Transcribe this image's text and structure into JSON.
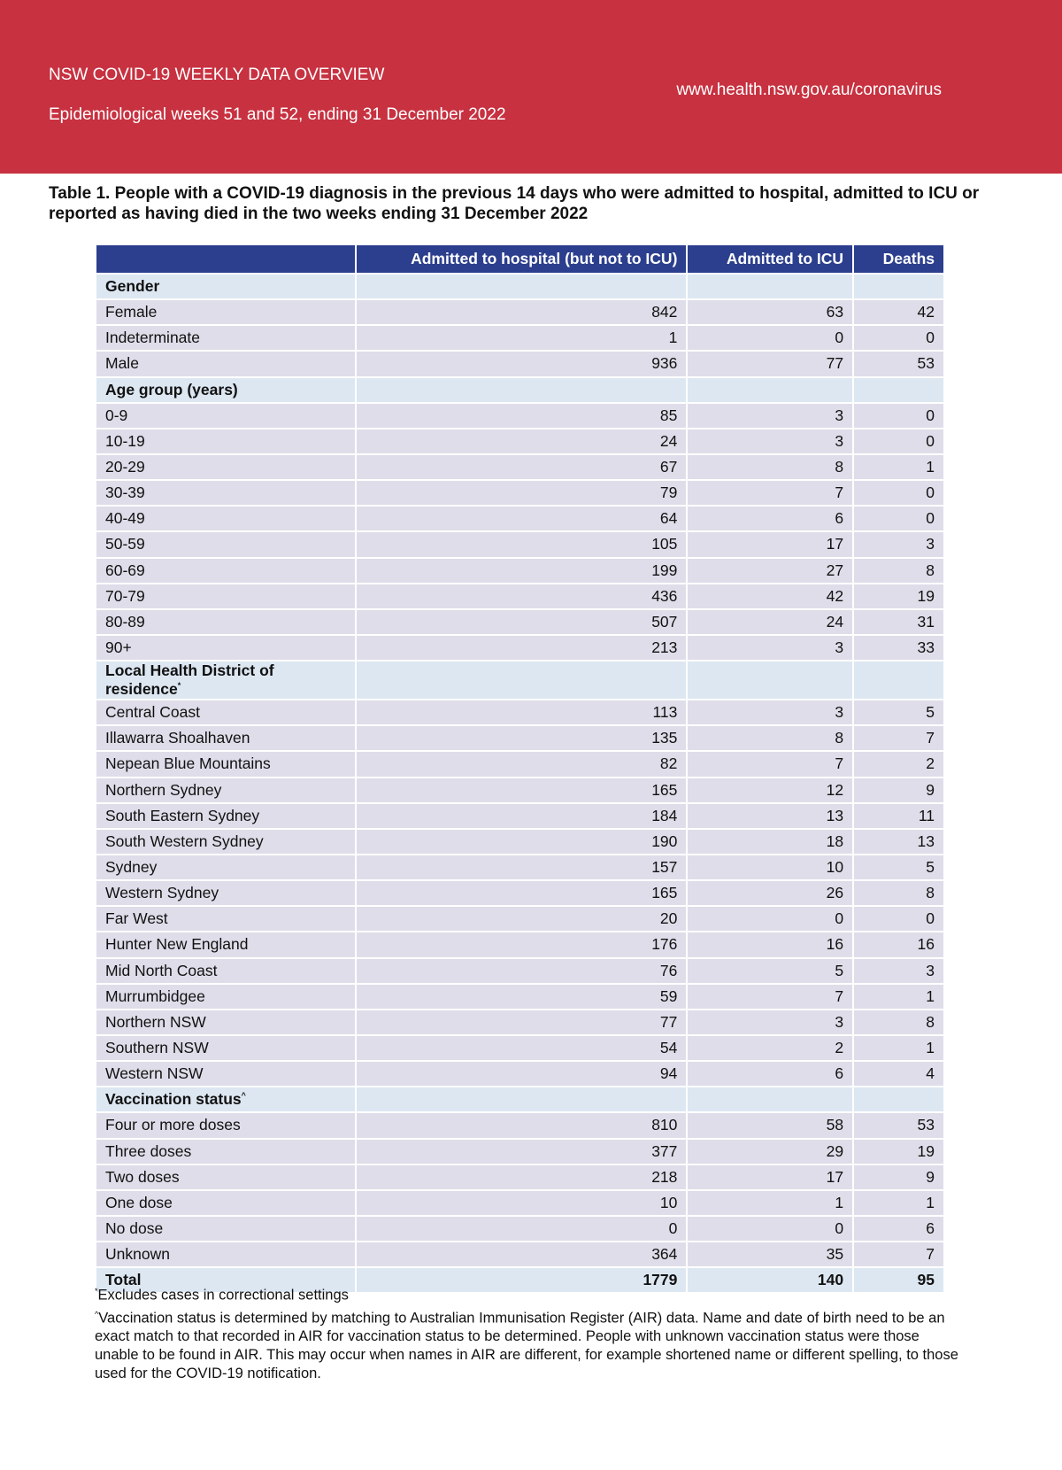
{
  "header": {
    "title": "NSW COVID-19 WEEKLY DATA OVERVIEW",
    "subtitle": "Epidemiological weeks 51 and 52, ending 31 December 2022",
    "url": "www.health.nsw.gov.au/coronavirus"
  },
  "table_title": "Table 1. People with a COVID-19 diagnosis in the previous 14 days who were admitted to hospital, admitted to ICU or reported as having died in the two weeks ending 31 December 2022",
  "columns": [
    "",
    "Admitted to hospital (but not to ICU)",
    "Admitted to ICU",
    "Deaths"
  ],
  "sections": [
    {
      "label": "Gender",
      "mark": "",
      "rows": [
        [
          "Female",
          "842",
          "63",
          "42"
        ],
        [
          "Indeterminate",
          "1",
          "0",
          "0"
        ],
        [
          "Male",
          "936",
          "77",
          "53"
        ]
      ]
    },
    {
      "label": "Age group (years)",
      "mark": "",
      "rows": [
        [
          "0-9",
          "85",
          "3",
          "0"
        ],
        [
          "10-19",
          "24",
          "3",
          "0"
        ],
        [
          "20-29",
          "67",
          "8",
          "1"
        ],
        [
          "30-39",
          "79",
          "7",
          "0"
        ],
        [
          "40-49",
          "64",
          "6",
          "0"
        ],
        [
          "50-59",
          "105",
          "17",
          "3"
        ],
        [
          "60-69",
          "199",
          "27",
          "8"
        ],
        [
          "70-79",
          "436",
          "42",
          "19"
        ],
        [
          "80-89",
          "507",
          "24",
          "31"
        ],
        [
          "90+",
          "213",
          "3",
          "33"
        ]
      ]
    },
    {
      "label": "Local Health District of residence",
      "mark": "*",
      "rows": [
        [
          "Central Coast",
          "113",
          "3",
          "5"
        ],
        [
          "Illawarra Shoalhaven",
          "135",
          "8",
          "7"
        ],
        [
          "Nepean Blue Mountains",
          "82",
          "7",
          "2"
        ],
        [
          "Northern Sydney",
          "165",
          "12",
          "9"
        ],
        [
          "South Eastern Sydney",
          "184",
          "13",
          "11"
        ],
        [
          "South Western Sydney",
          "190",
          "18",
          "13"
        ],
        [
          "Sydney",
          "157",
          "10",
          "5"
        ],
        [
          "Western Sydney",
          "165",
          "26",
          "8"
        ],
        [
          "Far West",
          "20",
          "0",
          "0"
        ],
        [
          "Hunter New England",
          "176",
          "16",
          "16"
        ],
        [
          "Mid North Coast",
          "76",
          "5",
          "3"
        ],
        [
          "Murrumbidgee",
          "59",
          "7",
          "1"
        ],
        [
          "Northern NSW",
          "77",
          "3",
          "8"
        ],
        [
          "Southern NSW",
          "54",
          "2",
          "1"
        ],
        [
          "Western NSW",
          "94",
          "6",
          "4"
        ]
      ]
    },
    {
      "label": "Vaccination status",
      "mark": "^",
      "rows": [
        [
          "Four or more doses",
          "810",
          "58",
          "53"
        ],
        [
          "Three doses",
          "377",
          "29",
          "19"
        ],
        [
          "Two doses",
          "218",
          "17",
          "9"
        ],
        [
          "One dose",
          "10",
          "1",
          "1"
        ],
        [
          "No dose",
          "0",
          "0",
          "6"
        ],
        [
          "Unknown",
          "364",
          "35",
          "7"
        ]
      ]
    }
  ],
  "total": [
    "Total",
    "1779",
    "140",
    "95"
  ],
  "notes": [
    {
      "mark": "*",
      "text": "Excludes cases in correctional settings"
    },
    {
      "mark": "^",
      "text": "Vaccination status is determined by matching to Australian Immunisation Register (AIR) data. Name and date of birth need to be an exact match to that recorded in AIR for vaccination status to be determined. People with unknown vaccination status were those unable to be found in AIR. This may occur when names in AIR are different, for example shortened name or different spelling, to those used for the COVID-19 notification."
    }
  ]
}
